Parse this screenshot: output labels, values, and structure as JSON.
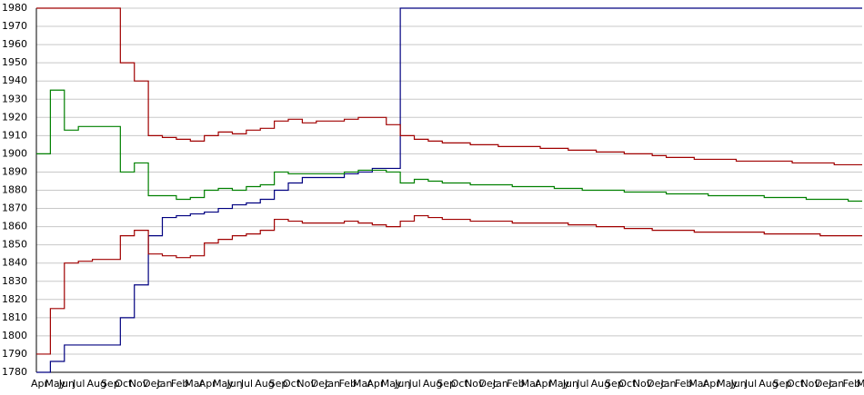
{
  "chart_data": {
    "type": "line",
    "categories": [
      "Apr",
      "May",
      "Jun",
      "Jul",
      "Aug",
      "Sep",
      "Oct",
      "Nov",
      "Dec",
      "Jan",
      "Feb",
      "Mar",
      "Apr",
      "May",
      "Jun",
      "Jul",
      "Aug",
      "Sep",
      "Oct",
      "Nov",
      "Dec",
      "Jan",
      "Feb",
      "Mar",
      "Apr",
      "May",
      "Jun",
      "Jul",
      "Aug",
      "Sep",
      "Oct",
      "Nov",
      "Dec",
      "Jan",
      "Feb",
      "Mar",
      "Apr",
      "May",
      "Jun",
      "Jul",
      "Aug",
      "Sep",
      "Oct",
      "Nov",
      "Dec",
      "Jan",
      "Feb",
      "Mar",
      "Apr",
      "May",
      "Jun",
      "Jul",
      "Aug",
      "Sep",
      "Oct",
      "Nov",
      "Dec",
      "Jan",
      "Feb",
      "Mar"
    ],
    "series": [
      {
        "color": "#000080",
        "values": [
          1780,
          1786,
          1795,
          1795,
          1795,
          1795,
          1810,
          1828,
          1855,
          1865,
          1866,
          1867,
          1868,
          1870,
          1872,
          1873,
          1875,
          1880,
          1884,
          1887,
          1887,
          1887,
          1889,
          1890,
          1892,
          1892,
          1980,
          1980,
          1980,
          1980,
          1980,
          1980,
          1980,
          1980,
          1980,
          1980,
          1980,
          1980,
          1980,
          1980,
          1980,
          1980,
          1980,
          1980,
          1980,
          1980,
          1980,
          1980,
          1980,
          1980,
          1980,
          1980,
          1980,
          1980,
          1980,
          1980,
          1980,
          1980,
          1980,
          1980
        ]
      },
      {
        "color": "#a00000",
        "values": [
          1980,
          1980,
          1980,
          1980,
          1980,
          1980,
          1950,
          1940,
          1910,
          1909,
          1908,
          1907,
          1910,
          1912,
          1911,
          1913,
          1914,
          1918,
          1919,
          1917,
          1918,
          1918,
          1919,
          1920,
          1920,
          1916,
          1910,
          1908,
          1907,
          1906,
          1906,
          1905,
          1905,
          1904,
          1904,
          1904,
          1903,
          1903,
          1902,
          1902,
          1901,
          1901,
          1900,
          1900,
          1899,
          1898,
          1898,
          1897,
          1897,
          1897,
          1896,
          1896,
          1896,
          1896,
          1895,
          1895,
          1895,
          1894,
          1894,
          1894
        ]
      },
      {
        "color": "#008000",
        "values": [
          1900,
          1935,
          1913,
          1915,
          1915,
          1915,
          1890,
          1895,
          1877,
          1877,
          1875,
          1876,
          1880,
          1881,
          1880,
          1882,
          1883,
          1890,
          1889,
          1889,
          1889,
          1889,
          1890,
          1891,
          1891,
          1890,
          1884,
          1886,
          1885,
          1884,
          1884,
          1883,
          1883,
          1883,
          1882,
          1882,
          1882,
          1881,
          1881,
          1880,
          1880,
          1880,
          1879,
          1879,
          1879,
          1878,
          1878,
          1878,
          1877,
          1877,
          1877,
          1877,
          1876,
          1876,
          1876,
          1875,
          1875,
          1875,
          1874,
          1874
        ]
      },
      {
        "color": "#a00000",
        "values": [
          1790,
          1815,
          1840,
          1841,
          1842,
          1842,
          1855,
          1858,
          1845,
          1844,
          1843,
          1844,
          1851,
          1853,
          1855,
          1856,
          1858,
          1864,
          1863,
          1862,
          1862,
          1862,
          1863,
          1862,
          1861,
          1860,
          1863,
          1866,
          1865,
          1864,
          1864,
          1863,
          1863,
          1863,
          1862,
          1862,
          1862,
          1862,
          1861,
          1861,
          1860,
          1860,
          1859,
          1859,
          1858,
          1858,
          1858,
          1857,
          1857,
          1857,
          1857,
          1857,
          1856,
          1856,
          1856,
          1856,
          1855,
          1855,
          1855,
          1855
        ]
      }
    ],
    "ylim": [
      1780,
      1980
    ],
    "yticks": [
      1780,
      1790,
      1800,
      1810,
      1820,
      1830,
      1840,
      1850,
      1860,
      1870,
      1880,
      1890,
      1900,
      1910,
      1920,
      1930,
      1940,
      1950,
      1960,
      1970,
      1980
    ],
    "grid": true
  }
}
